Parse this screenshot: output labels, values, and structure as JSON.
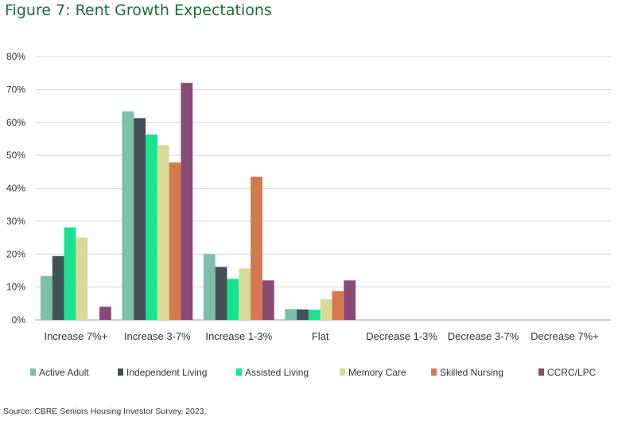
{
  "title": "Figure 7: Rent Growth Expectations",
  "source": "Source: CBRE Seniors Housing Investor Survey, 2023.",
  "chart_data": {
    "type": "bar",
    "categories": [
      "Increase 7%+",
      "Increase 3-7%",
      "Increase 1-3%",
      "Flat",
      "Decrease 1-3%",
      "Decrease 3-7%",
      "Decrease 7%+"
    ],
    "ylim": [
      0,
      80
    ],
    "yticks": [
      0,
      10,
      20,
      30,
      40,
      50,
      60,
      70,
      80
    ],
    "ytick_labels": [
      "0%",
      "10%",
      "20%",
      "30%",
      "40%",
      "50%",
      "60%",
      "70%",
      "80%"
    ],
    "grid": true,
    "legend_position": "bottom",
    "series": [
      {
        "name": "Active Adult",
        "color": "#7fbfa8",
        "values": [
          13.3,
          63.3,
          20.0,
          3.3,
          0,
          0,
          0
        ]
      },
      {
        "name": "Independent Living",
        "color": "#435254",
        "values": [
          19.4,
          61.3,
          16.1,
          3.2,
          0,
          0,
          0
        ]
      },
      {
        "name": "Assisted Living",
        "color": "#19e38e",
        "values": [
          28.1,
          56.3,
          12.5,
          3.1,
          0,
          0,
          0
        ]
      },
      {
        "name": "Memory Care",
        "color": "#dbd99a",
        "values": [
          25.0,
          53.1,
          15.6,
          6.3,
          0,
          0,
          0
        ]
      },
      {
        "name": "Skilled Nursing",
        "color": "#d6784f",
        "values": [
          0,
          47.8,
          43.5,
          8.7,
          0,
          0,
          0
        ]
      },
      {
        "name": "CCRC/LPC",
        "color": "#8b4a75",
        "values": [
          4.0,
          72.0,
          12.0,
          12.0,
          0,
          0,
          0
        ]
      }
    ]
  }
}
